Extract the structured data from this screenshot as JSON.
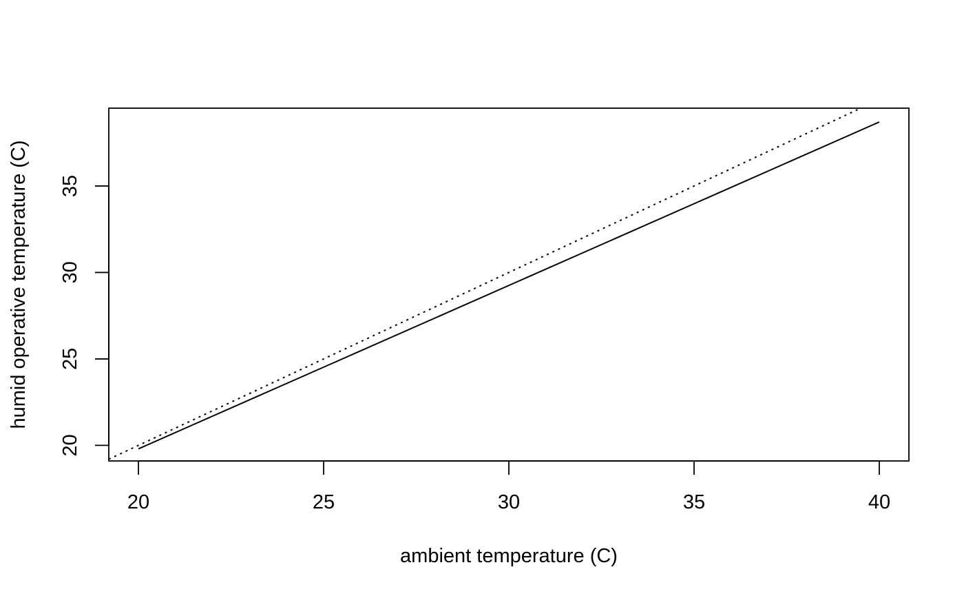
{
  "chart_data": {
    "type": "line",
    "title": "",
    "xlabel": "ambient temperature (C)",
    "ylabel": "humid operative temperature (C)",
    "xlim": [
      19.2,
      40.8
    ],
    "ylim": [
      19.1,
      39.5
    ],
    "x_ticks": [
      20,
      25,
      30,
      35,
      40
    ],
    "y_ticks": [
      20,
      25,
      30,
      35
    ],
    "grid": false,
    "legend": "none",
    "series": [
      {
        "line_style": "solid",
        "color": "#000000",
        "points": [
          [
            20,
            19.8
          ],
          [
            40,
            38.7
          ]
        ]
      },
      {
        "line_style": "dotted",
        "color": "#000000",
        "points": [
          [
            19.2,
            19.2
          ],
          [
            40.8,
            40.8
          ]
        ]
      }
    ]
  }
}
